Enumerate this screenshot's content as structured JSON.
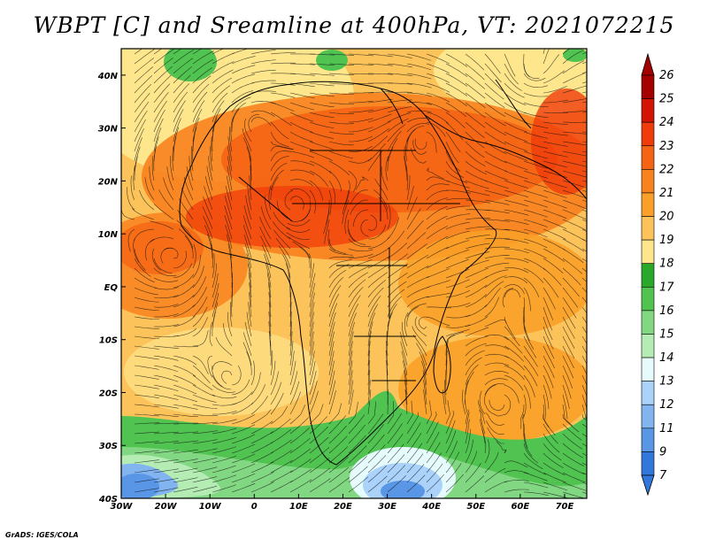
{
  "title": "WBPT [C] and Sreamline at 400hPa, VT: 2021072215",
  "credit": "GrADS: IGES/COLA",
  "map": {
    "lon_range": [
      -30,
      75
    ],
    "lat_range": [
      -40,
      45
    ],
    "lon_ticks": [
      {
        "value": -30,
        "label": "30W"
      },
      {
        "value": -20,
        "label": "20W"
      },
      {
        "value": -10,
        "label": "10W"
      },
      {
        "value": 0,
        "label": "0"
      },
      {
        "value": 10,
        "label": "10E"
      },
      {
        "value": 20,
        "label": "20E"
      },
      {
        "value": 30,
        "label": "30E"
      },
      {
        "value": 40,
        "label": "40E"
      },
      {
        "value": 50,
        "label": "50E"
      },
      {
        "value": 60,
        "label": "60E"
      },
      {
        "value": 70,
        "label": "70E"
      }
    ],
    "lat_ticks": [
      {
        "value": 40,
        "label": "40N"
      },
      {
        "value": 30,
        "label": "30N"
      },
      {
        "value": 20,
        "label": "20N"
      },
      {
        "value": 10,
        "label": "10N"
      },
      {
        "value": 0,
        "label": "EQ"
      },
      {
        "value": -10,
        "label": "10S"
      },
      {
        "value": -20,
        "label": "20S"
      },
      {
        "value": -30,
        "label": "30S"
      },
      {
        "value": -40,
        "label": "40S"
      }
    ]
  },
  "colorbar": {
    "labels": [
      "26",
      "25",
      "24",
      "23",
      "22",
      "21",
      "20",
      "19",
      "18",
      "17",
      "16",
      "15",
      "14",
      "13",
      "12",
      "11",
      "9",
      "7"
    ],
    "colors": [
      "#a50000",
      "#d21400",
      "#f03c0a",
      "#f56414",
      "#f8821e",
      "#faa028",
      "#fcc35a",
      "#fde68c",
      "#29a829",
      "#50c350",
      "#82d882",
      "#b4ecb4",
      "#e6fcfc",
      "#aad2fa",
      "#82b4f0",
      "#5a96e6",
      "#3278dc"
    ]
  }
}
